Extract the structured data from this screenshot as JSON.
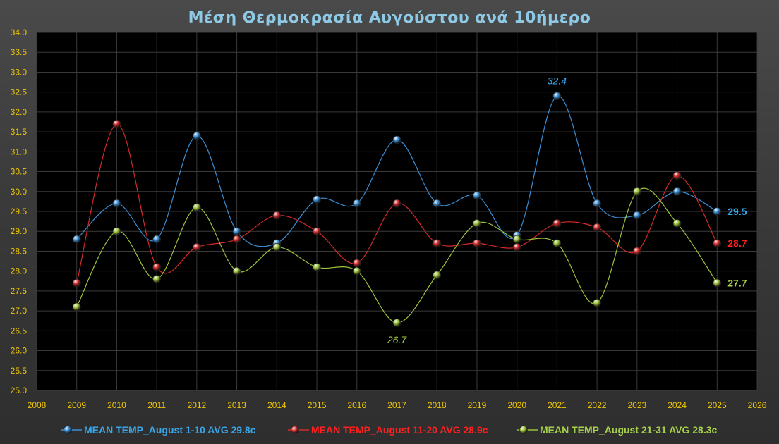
{
  "chart_data": {
    "type": "line",
    "title": "Μέση Θερμοκρασία Αυγούστου ανά 10ήμερο",
    "x": [
      2009,
      2010,
      2011,
      2012,
      2013,
      2014,
      2015,
      2016,
      2017,
      2018,
      2019,
      2020,
      2021,
      2022,
      2023,
      2024,
      2025
    ],
    "xlim": [
      2008,
      2026
    ],
    "ylim": [
      25.0,
      34.0
    ],
    "x_ticks": [
      "2008",
      "2009",
      "2010",
      "2011",
      "2012",
      "2013",
      "2014",
      "2015",
      "2016",
      "2017",
      "2018",
      "2019",
      "2020",
      "2021",
      "2022",
      "2023",
      "2024",
      "2025",
      "2026"
    ],
    "y_ticks": [
      "25.0",
      "25.5",
      "26.0",
      "26.5",
      "27.0",
      "27.5",
      "28.0",
      "28.5",
      "29.0",
      "29.5",
      "30.0",
      "30.5",
      "31.0",
      "31.5",
      "32.0",
      "32.5",
      "33.0",
      "33.5",
      "34.0"
    ],
    "grid": true,
    "smooth": true,
    "legend_position": "bottom",
    "series": [
      {
        "name": "MEAN TEMP_August 1-10 AVG 29.8c",
        "color": "#3a8fd6",
        "label_color": "#3aa6e8",
        "values": [
          28.8,
          29.7,
          28.8,
          31.4,
          29.0,
          28.7,
          29.8,
          29.7,
          31.3,
          29.7,
          29.9,
          28.9,
          32.4,
          29.7,
          29.4,
          30.0,
          29.5
        ],
        "end_label": "29.5",
        "annotation": {
          "x": 2021,
          "text": "32.4",
          "position": "above"
        }
      },
      {
        "name": "MEAN TEMP_August 11-20 AVG 28.9c",
        "color": "#d42a2a",
        "label_color": "#ff2020",
        "values": [
          27.7,
          31.7,
          28.1,
          28.6,
          28.8,
          29.4,
          29.0,
          28.2,
          29.7,
          28.7,
          28.7,
          28.6,
          29.2,
          29.1,
          28.5,
          30.4,
          28.7
        ],
        "end_label": "28.7"
      },
      {
        "name": "MEAN TEMP_August 21-31 AVG 28.3c",
        "color": "#9cc43a",
        "label_color": "#a6d24a",
        "values": [
          27.1,
          29.0,
          27.8,
          29.6,
          28.0,
          28.6,
          28.1,
          28.0,
          26.7,
          27.9,
          29.2,
          28.8,
          28.7,
          27.2,
          30.0,
          29.2,
          27.7
        ],
        "end_label": "27.7",
        "annotation": {
          "x": 2017,
          "text": "26.7",
          "position": "below"
        }
      }
    ]
  },
  "colors": {
    "plot_background": "#000000",
    "grid": "#3a3a3a",
    "tick_text": "#f0c800",
    "title": "#8ecae6"
  }
}
